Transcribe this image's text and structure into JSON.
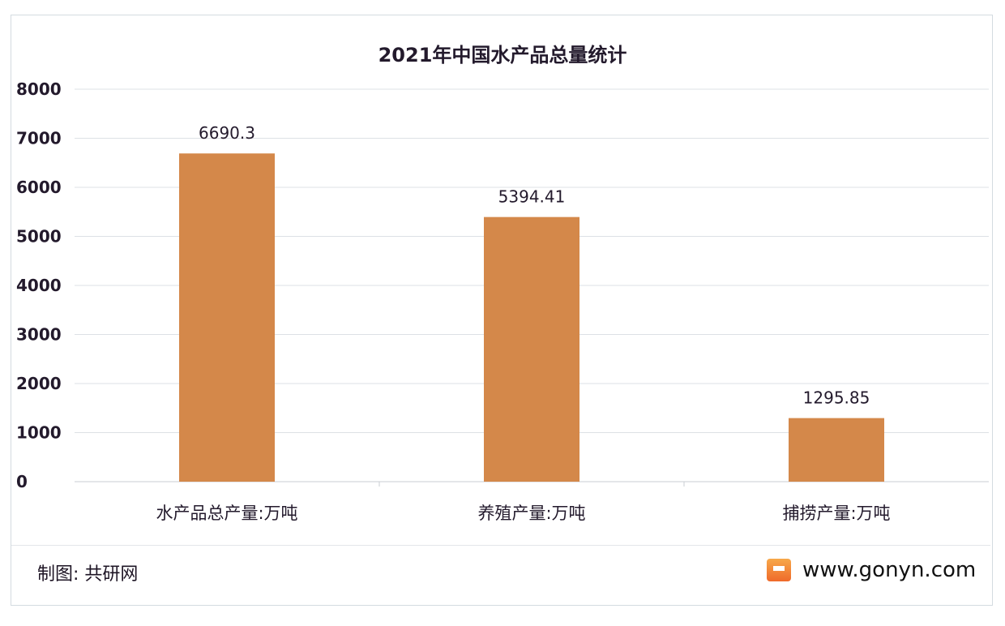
{
  "chart_data": {
    "type": "bar",
    "title": "2021年中国水产品总量统计",
    "categories": [
      "水产品总产量:万吨",
      "养殖产量:万吨",
      "捕捞产量:万吨"
    ],
    "values": [
      6690.3,
      5394.41,
      1295.85
    ],
    "value_labels": [
      "6690.3",
      "5394.41",
      "1295.85"
    ],
    "ylim": [
      0,
      8000
    ],
    "yticks": [
      "0",
      "1000",
      "2000",
      "3000",
      "4000",
      "5000",
      "6000",
      "7000",
      "8000"
    ],
    "xlabel": "",
    "ylabel": "",
    "grid": true,
    "bar_color": "#d4884a"
  },
  "footer": {
    "credit": "制图: 共研网",
    "website": "www.gonyn.com"
  }
}
